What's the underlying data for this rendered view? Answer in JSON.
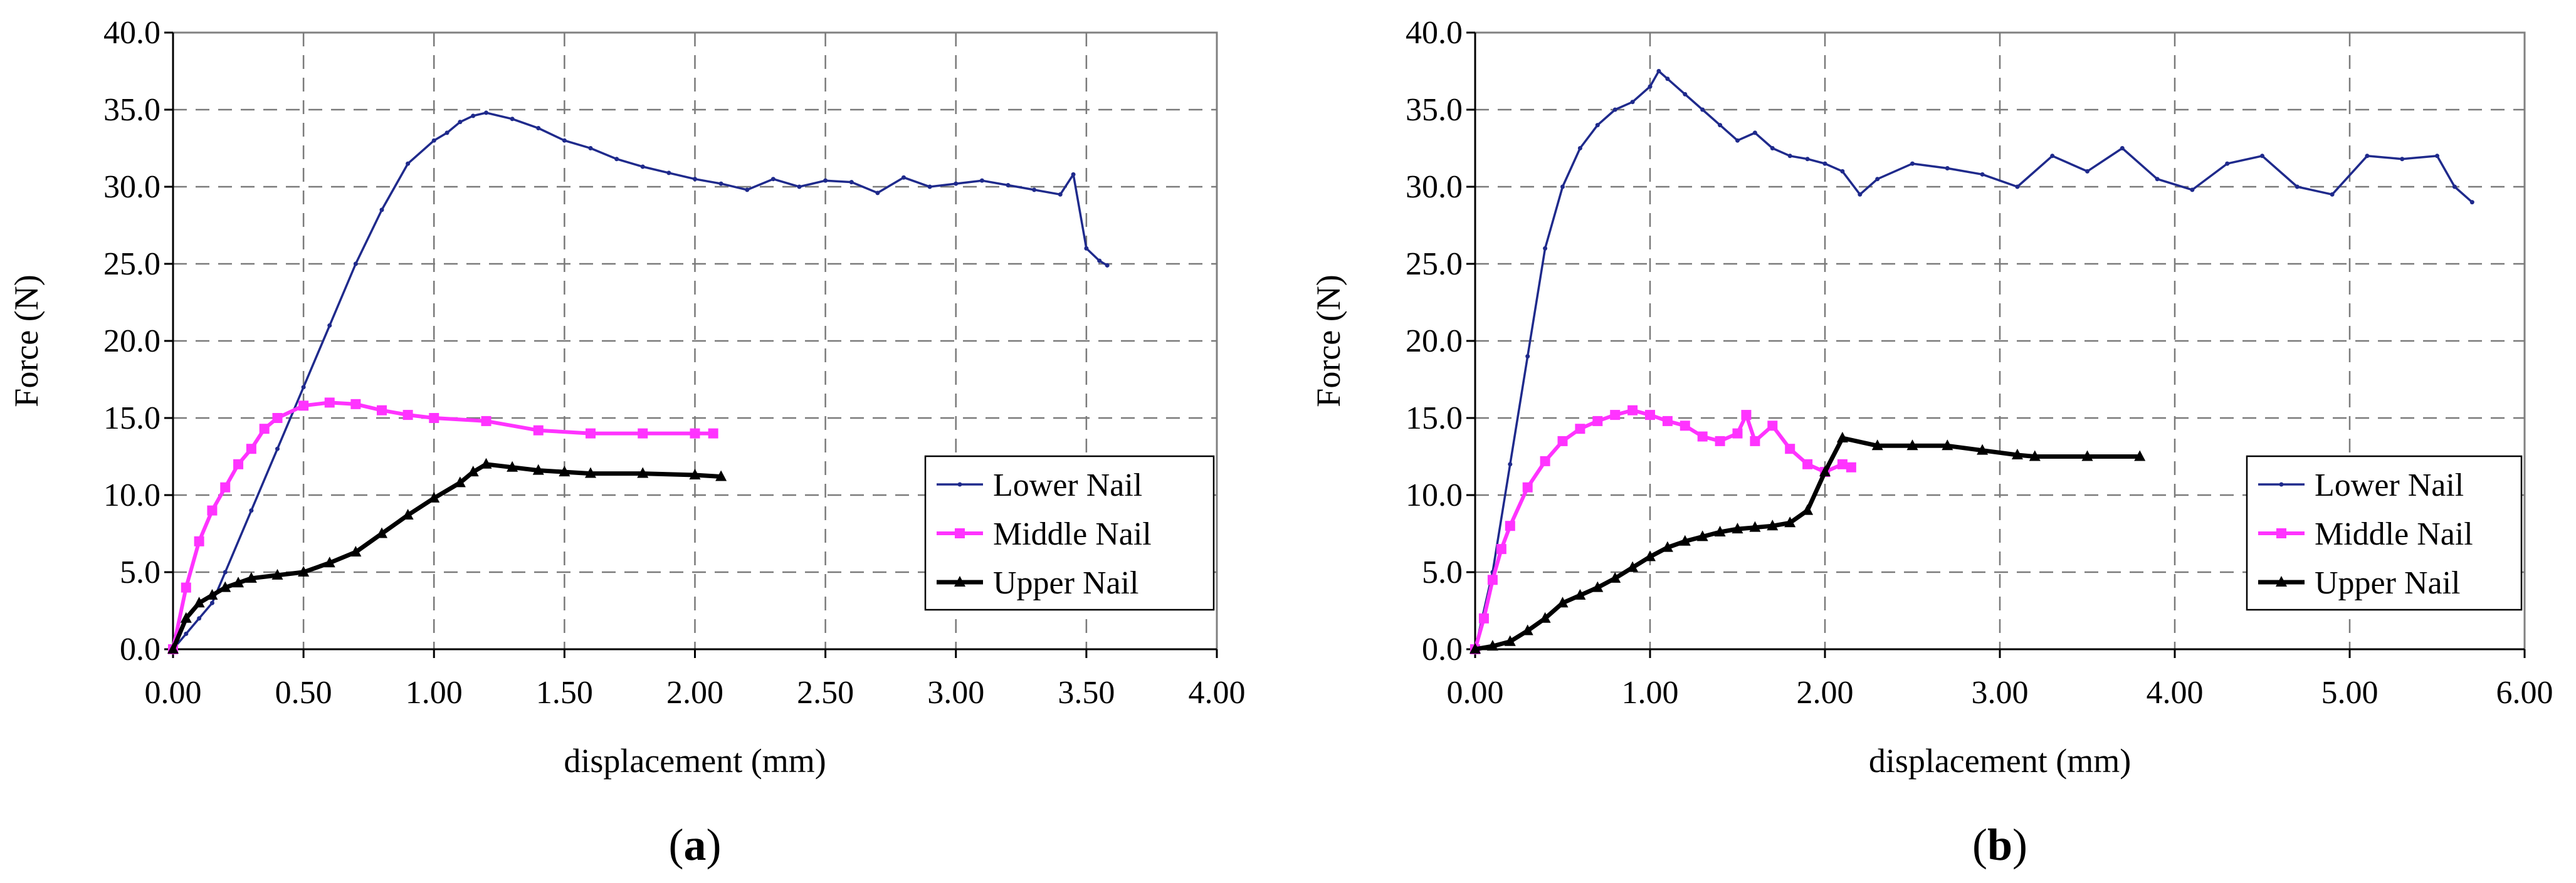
{
  "chart_data": [
    {
      "type": "line",
      "panel_label": "(a)",
      "panel_letter": "a",
      "xlabel": "displacement (mm)",
      "ylabel": "Force (N)",
      "xlim": [
        0,
        4
      ],
      "ylim": [
        0,
        40
      ],
      "x_ticks": [
        "0.00",
        "0.50",
        "1.00",
        "1.50",
        "2.00",
        "2.50",
        "3.00",
        "3.50",
        "4.00"
      ],
      "y_ticks": [
        "0.0",
        "5.0",
        "10.0",
        "15.0",
        "20.0",
        "25.0",
        "30.0",
        "35.0",
        "40.0"
      ],
      "grid": true,
      "legend_position": "bottom-right",
      "series": [
        {
          "name": "Lower Nail",
          "color": "#1f2a8c",
          "marker": "dot",
          "x": [
            0.0,
            0.05,
            0.1,
            0.15,
            0.2,
            0.3,
            0.4,
            0.5,
            0.6,
            0.7,
            0.8,
            0.9,
            1.0,
            1.05,
            1.1,
            1.15,
            1.2,
            1.3,
            1.4,
            1.5,
            1.6,
            1.7,
            1.8,
            1.9,
            2.0,
            2.1,
            2.2,
            2.3,
            2.4,
            2.5,
            2.6,
            2.7,
            2.8,
            2.9,
            3.0,
            3.1,
            3.2,
            3.3,
            3.4,
            3.45,
            3.5,
            3.55,
            3.58
          ],
          "y": [
            0.0,
            1.0,
            2.0,
            3.0,
            5.0,
            9.0,
            13.0,
            17.0,
            21.0,
            25.0,
            28.5,
            31.5,
            33.0,
            33.5,
            34.2,
            34.6,
            34.8,
            34.4,
            33.8,
            33.0,
            32.5,
            31.8,
            31.3,
            30.9,
            30.5,
            30.2,
            29.8,
            30.5,
            30.0,
            30.4,
            30.3,
            29.6,
            30.6,
            30.0,
            30.2,
            30.4,
            30.1,
            29.8,
            29.5,
            30.8,
            26.0,
            25.2,
            24.9
          ]
        },
        {
          "name": "Middle Nail",
          "color": "#ff33ff",
          "marker": "square",
          "x": [
            0.0,
            0.05,
            0.1,
            0.15,
            0.2,
            0.25,
            0.3,
            0.35,
            0.4,
            0.5,
            0.6,
            0.7,
            0.8,
            0.9,
            1.0,
            1.2,
            1.4,
            1.6,
            1.8,
            2.0,
            2.07
          ],
          "y": [
            0.0,
            4.0,
            7.0,
            9.0,
            10.5,
            12.0,
            13.0,
            14.3,
            15.0,
            15.8,
            16.0,
            15.9,
            15.5,
            15.2,
            15.0,
            14.8,
            14.2,
            14.0,
            14.0,
            14.0,
            14.0
          ]
        },
        {
          "name": "Upper Nail",
          "color": "#000000",
          "marker": "triangle",
          "x": [
            0.0,
            0.05,
            0.1,
            0.15,
            0.2,
            0.25,
            0.3,
            0.4,
            0.5,
            0.6,
            0.7,
            0.8,
            0.9,
            1.0,
            1.1,
            1.15,
            1.2,
            1.3,
            1.4,
            1.5,
            1.6,
            1.8,
            2.0,
            2.1
          ],
          "y": [
            0.0,
            2.0,
            3.0,
            3.5,
            4.0,
            4.3,
            4.6,
            4.8,
            5.0,
            5.6,
            6.3,
            7.5,
            8.7,
            9.8,
            10.8,
            11.5,
            12.0,
            11.8,
            11.6,
            11.5,
            11.4,
            11.4,
            11.3,
            11.2
          ]
        }
      ]
    },
    {
      "type": "line",
      "panel_label": "(b)",
      "panel_letter": "b",
      "xlabel": "displacement (mm)",
      "ylabel": "Force (N)",
      "xlim": [
        0,
        6
      ],
      "ylim": [
        0,
        40
      ],
      "x_ticks": [
        "0.00",
        "1.00",
        "2.00",
        "3.00",
        "4.00",
        "5.00",
        "6.00"
      ],
      "y_ticks": [
        "0.0",
        "5.0",
        "10.0",
        "15.0",
        "20.0",
        "25.0",
        "30.0",
        "35.0",
        "40.0"
      ],
      "grid": true,
      "legend_position": "bottom-right",
      "series": [
        {
          "name": "Lower Nail",
          "color": "#1f2a8c",
          "marker": "dot",
          "x": [
            0.0,
            0.1,
            0.2,
            0.3,
            0.4,
            0.5,
            0.6,
            0.7,
            0.8,
            0.9,
            1.0,
            1.05,
            1.1,
            1.2,
            1.3,
            1.4,
            1.5,
            1.6,
            1.7,
            1.8,
            1.9,
            2.0,
            2.1,
            2.2,
            2.3,
            2.5,
            2.7,
            2.9,
            3.1,
            3.3,
            3.5,
            3.7,
            3.9,
            4.1,
            4.3,
            4.5,
            4.7,
            4.9,
            5.1,
            5.3,
            5.5,
            5.6,
            5.7
          ],
          "y": [
            0.0,
            5.0,
            12.0,
            19.0,
            26.0,
            30.0,
            32.5,
            34.0,
            35.0,
            35.5,
            36.5,
            37.5,
            37.0,
            36.0,
            35.0,
            34.0,
            33.0,
            33.5,
            32.5,
            32.0,
            31.8,
            31.5,
            31.0,
            29.5,
            30.5,
            31.5,
            31.2,
            30.8,
            30.0,
            32.0,
            31.0,
            32.5,
            30.5,
            29.8,
            31.5,
            32.0,
            30.0,
            29.5,
            32.0,
            31.8,
            32.0,
            30.0,
            29.0
          ]
        },
        {
          "name": "Middle Nail",
          "color": "#ff33ff",
          "marker": "square",
          "x": [
            0.0,
            0.05,
            0.1,
            0.15,
            0.2,
            0.3,
            0.4,
            0.5,
            0.6,
            0.7,
            0.8,
            0.9,
            1.0,
            1.1,
            1.2,
            1.3,
            1.4,
            1.5,
            1.55,
            1.6,
            1.7,
            1.8,
            1.9,
            2.0,
            2.1,
            2.15
          ],
          "y": [
            0.0,
            2.0,
            4.5,
            6.5,
            8.0,
            10.5,
            12.2,
            13.5,
            14.3,
            14.8,
            15.2,
            15.5,
            15.2,
            14.8,
            14.5,
            13.8,
            13.5,
            14.0,
            15.2,
            13.5,
            14.5,
            13.0,
            12.0,
            11.5,
            12.0,
            11.8
          ]
        },
        {
          "name": "Upper Nail",
          "color": "#000000",
          "marker": "triangle",
          "x": [
            0.0,
            0.1,
            0.2,
            0.3,
            0.4,
            0.5,
            0.6,
            0.7,
            0.8,
            0.9,
            1.0,
            1.1,
            1.2,
            1.3,
            1.4,
            1.5,
            1.6,
            1.7,
            1.8,
            1.9,
            2.0,
            2.1,
            2.3,
            2.5,
            2.7,
            2.9,
            3.1,
            3.2,
            3.5,
            3.8
          ],
          "y": [
            0.0,
            0.2,
            0.5,
            1.2,
            2.0,
            3.0,
            3.5,
            4.0,
            4.6,
            5.3,
            6.0,
            6.6,
            7.0,
            7.3,
            7.6,
            7.8,
            7.9,
            8.0,
            8.2,
            9.0,
            11.5,
            13.7,
            13.2,
            13.2,
            13.2,
            12.9,
            12.6,
            12.5,
            12.5,
            12.5
          ]
        }
      ]
    }
  ]
}
